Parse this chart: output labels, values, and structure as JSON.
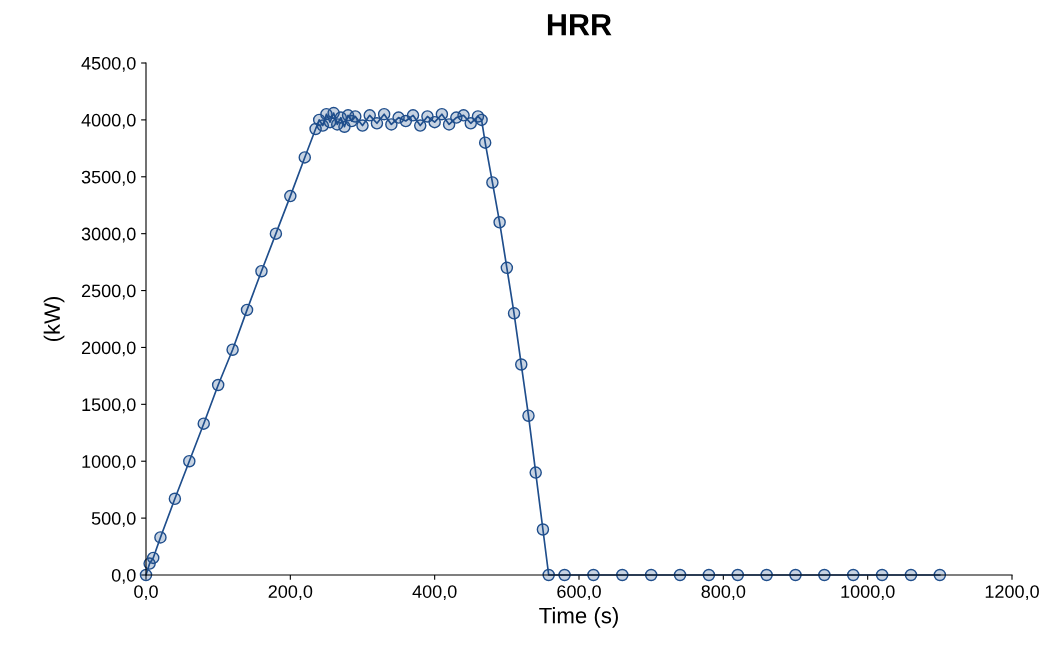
{
  "chart_data": {
    "type": "line",
    "title": "HRR",
    "xlabel": "Time (s)",
    "ylabel": "(kW)",
    "xlim": [
      0,
      1200
    ],
    "ylim": [
      0,
      4500
    ],
    "xticks": [
      {
        "value": 0,
        "label": "0,0"
      },
      {
        "value": 200,
        "label": "200,0"
      },
      {
        "value": 400,
        "label": "400,0"
      },
      {
        "value": 600,
        "label": "600,0"
      },
      {
        "value": 800,
        "label": "800,0"
      },
      {
        "value": 1000,
        "label": "1000,0"
      },
      {
        "value": 1200,
        "label": "1200,0"
      }
    ],
    "yticks": [
      {
        "value": 0,
        "label": "0,0"
      },
      {
        "value": 500,
        "label": "500,0"
      },
      {
        "value": 1000,
        "label": "1000,0"
      },
      {
        "value": 1500,
        "label": "1500,0"
      },
      {
        "value": 2000,
        "label": "2000,0"
      },
      {
        "value": 2500,
        "label": "2500,0"
      },
      {
        "value": 3000,
        "label": "3000,0"
      },
      {
        "value": 3500,
        "label": "3500,0"
      },
      {
        "value": 4000,
        "label": "4000,0"
      },
      {
        "value": 4500,
        "label": "4500,0"
      }
    ],
    "grid": false,
    "legend": false,
    "marker": "circle",
    "line_style": "solid",
    "series": [
      {
        "color": "#1f4e8c",
        "x": [
          0,
          5,
          10,
          20,
          40,
          60,
          80,
          100,
          120,
          140,
          160,
          180,
          200,
          220,
          235,
          240,
          245,
          250,
          255,
          260,
          265,
          270,
          275,
          280,
          285,
          290,
          300,
          310,
          320,
          330,
          340,
          350,
          360,
          370,
          380,
          390,
          400,
          410,
          420,
          430,
          440,
          450,
          460,
          465,
          470,
          480,
          490,
          500,
          510,
          520,
          530,
          540,
          550,
          558,
          580,
          620,
          660,
          700,
          740,
          780,
          820,
          860,
          900,
          940,
          980,
          1020,
          1060,
          1100
        ],
        "values": [
          0,
          100,
          150,
          330,
          670,
          1000,
          1330,
          1670,
          1980,
          2330,
          2670,
          3000,
          3330,
          3670,
          3920,
          4000,
          3950,
          4050,
          3980,
          4060,
          3960,
          4020,
          3940,
          4040,
          3990,
          4030,
          3950,
          4040,
          3970,
          4050,
          3960,
          4020,
          3990,
          4040,
          3950,
          4030,
          3980,
          4050,
          3960,
          4020,
          4040,
          3970,
          4030,
          4000,
          3800,
          3450,
          3100,
          2700,
          2300,
          1850,
          1400,
          900,
          400,
          0,
          0,
          0,
          0,
          0,
          0,
          0,
          0,
          0,
          0,
          0,
          0,
          0,
          0,
          0
        ]
      }
    ]
  }
}
